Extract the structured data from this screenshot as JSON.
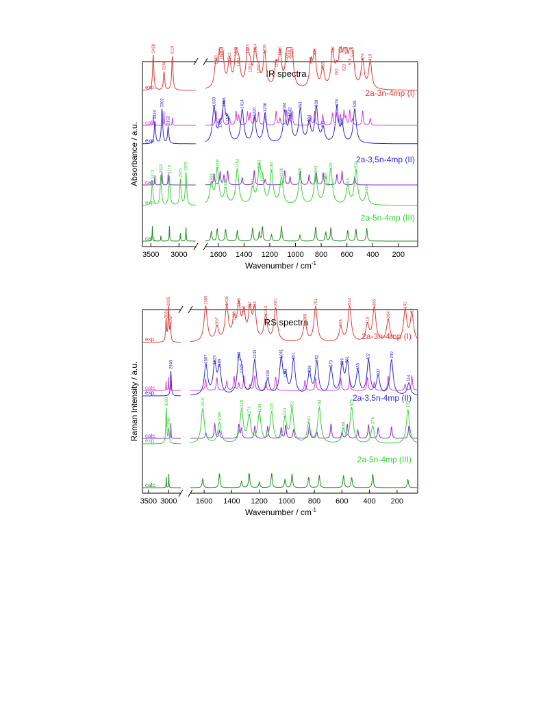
{
  "colors": {
    "red": "#e03a3a",
    "magenta": "#d63ad6",
    "blue": "#2a2ad0",
    "violet": "#8a2ad0",
    "green": "#3ad03a",
    "darkgreen": "#1f8a1f",
    "axis": "#000000"
  },
  "chart_data": [
    {
      "type": "line",
      "title": "IR spectra",
      "ylabel": "Absorbance / a.u.",
      "xlabel": "Wavenumber / cm",
      "xlabel_sup": "-1",
      "x_ticks_left": [
        "3500",
        "3000"
      ],
      "x_ticks_right": [
        "1600",
        "1400",
        "1200",
        "1000",
        "800",
        "600",
        "400",
        "200"
      ],
      "series": [
        {
          "name": "2a-3n-4mp (I)",
          "color": "red",
          "exp_label": "exp.",
          "calc_label": "calc.",
          "exp_peaks": [
            "3458",
            "3266",
            "3118",
            "1618",
            "1585",
            "1568",
            "1513",
            "1462",
            "1441",
            "1373",
            "1352",
            "1314",
            "1287",
            "1239",
            "1150",
            "1120",
            "1068",
            "1049",
            "1027",
            "880",
            "851",
            "788",
            "712",
            "681",
            "651",
            "623",
            "608",
            "578",
            "556",
            "478",
            "419"
          ]
        },
        {
          "name": "2a-3,5n-4mp (II)",
          "color": "blue",
          "exp_label": "exp.",
          "calc_label": "calc.",
          "exp_peaks": [
            "3428",
            "3302",
            "3192",
            "1633",
            "1586",
            "1556",
            "1527",
            "1414",
            "1320",
            "1236",
            "1084",
            "1042",
            "963",
            "894",
            "838",
            "785",
            "678",
            "638",
            "539"
          ]
        },
        {
          "name": "2a-5n-4mp (III)",
          "color": "green",
          "exp_label": "exp.",
          "calc_label": "calc.",
          "exp_peaks": [
            "3473",
            "3322",
            "3170",
            "2975",
            "2875",
            "1654",
            "1608",
            "1543",
            "1452",
            "1333",
            "1281",
            "1257",
            "1186",
            "1109",
            "965",
            "843",
            "765",
            "725",
            "594",
            "530",
            "446"
          ]
        }
      ]
    },
    {
      "type": "line",
      "title": "RS spectra",
      "ylabel": "Raman Intensity / a.u.",
      "xlabel": "Wavenumber / cm",
      "xlabel_sup": "-1",
      "x_ticks_left": [
        "3500",
        "3000"
      ],
      "x_ticks_right": [
        "1600",
        "1400",
        "1200",
        "1000",
        "800",
        "600",
        "400",
        "200"
      ],
      "series": [
        {
          "name": "2a-3n-4mp (I)",
          "color": "red",
          "exp_label": "exp.",
          "calc_label": "calc.",
          "exp_peaks": [
            "3064",
            "3005",
            "2957",
            "1589",
            "1507",
            "1436",
            "1383",
            "1348",
            "1312",
            "1267",
            "1234",
            "1153",
            "1081",
            "868",
            "791",
            "608",
            "544",
            "415",
            "365",
            "264",
            "141",
            "92"
          ]
        },
        {
          "name": "2a-3,5n-4mp (II)",
          "color": "blue",
          "exp_label": "exp.",
          "calc_label": "calc.",
          "exp_peaks": [
            "2945",
            "1587",
            "1523",
            "1489",
            "1348",
            "1329",
            "1233",
            "1139",
            "1041",
            "1008",
            "951",
            "836",
            "782",
            "679",
            "599",
            "561",
            "485",
            "407",
            "337",
            "240",
            "114"
          ]
        },
        {
          "name": "2a-5n-4mp (III)",
          "color": "green",
          "exp_label": "exp.",
          "calc_label": "calc.",
          "exp_peaks": [
            "3060",
            "2996",
            "1610",
            "1489",
            "1328",
            "1273",
            "1199",
            "1110",
            "1013",
            "962",
            "841",
            "764",
            "588",
            "529",
            "376",
            "121"
          ]
        }
      ]
    }
  ]
}
